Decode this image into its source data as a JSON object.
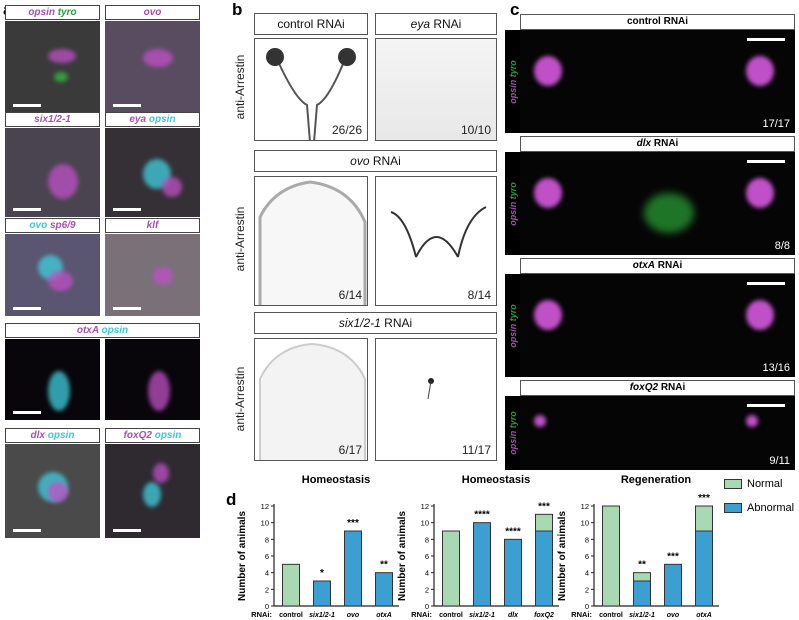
{
  "panel_a": {
    "letter": "a",
    "tiles": [
      {
        "label": [
          {
            "t": "opsin",
            "c": "mag"
          },
          {
            "t": " tyro",
            "c": "gr"
          }
        ],
        "bg": "#3a3a3a"
      },
      {
        "label": [
          {
            "t": "ovo",
            "c": "mag"
          }
        ],
        "bg": "#5a4c60"
      },
      {
        "label": [
          {
            "t": "six1/2-1",
            "c": "mag"
          }
        ],
        "bg": "#4a4450"
      },
      {
        "label": [
          {
            "t": "eya",
            "c": "mag"
          },
          {
            "t": " opsin",
            "c": "cy"
          }
        ],
        "bg": "#353035"
      },
      {
        "label": [
          {
            "t": "ovo",
            "c": "cy"
          },
          {
            "t": " sp6/9",
            "c": "mag"
          }
        ],
        "bg": "#5a5570"
      },
      {
        "label": [
          {
            "t": "klf",
            "c": "mag"
          }
        ],
        "bg": "#7a7078"
      },
      {
        "label": [
          {
            "t": "otxA",
            "c": "mag"
          },
          {
            "t": " opsin",
            "c": "cy"
          }
        ],
        "bg": "#08060a"
      },
      {
        "label": [
          {
            "t": "dlx",
            "c": "mag"
          },
          {
            "t": " opsin",
            "c": "cy"
          }
        ],
        "bg": "#4a4a4a"
      },
      {
        "label": [
          {
            "t": "foxQ2",
            "c": "mag"
          },
          {
            "t": " opsin",
            "c": "cy"
          }
        ],
        "bg": "#2e2a30"
      }
    ]
  },
  "panel_b": {
    "letter": "b",
    "axis_label": "anti-Arrestin",
    "control": {
      "label": "control RNAi",
      "count": "26/26"
    },
    "eya": {
      "label_gene": "eya",
      "label_suffix": " RNAi",
      "count": "10/10"
    },
    "ovo": {
      "label_gene": "ovo",
      "label_suffix": " RNAi",
      "counts": [
        "6/14",
        "8/14"
      ]
    },
    "six": {
      "label_gene": "six1/2-1",
      "label_suffix": " RNAi",
      "counts": [
        "6/17",
        "11/17"
      ]
    }
  },
  "panel_c": {
    "letter": "c",
    "side_label_1": "opsin",
    "side_label_2": " tyro",
    "rows": [
      {
        "gene": "control",
        "suffix": " RNAi",
        "count": "17/17",
        "italic": false
      },
      {
        "gene": "dlx",
        "suffix": " RNAi",
        "count": "8/8",
        "italic": true
      },
      {
        "gene": "otxA",
        "suffix": " RNAi",
        "count": "13/16",
        "italic": true
      },
      {
        "gene": "foxQ2",
        "suffix": " RNAi",
        "count": "9/11",
        "italic": true
      }
    ]
  },
  "panel_d": {
    "letter": "d"
  },
  "colors": {
    "normal": "#a9d9b2",
    "abnormal": "#3b9fd1",
    "magenta": "#c050c8",
    "cyan": "#40d0e0",
    "green": "#30c040"
  },
  "chart_data": [
    {
      "type": "bar",
      "stacked": true,
      "title": "Homeostasis",
      "ylabel": "Number of animals",
      "xprefix": "RNAi:",
      "ylim": [
        0,
        12
      ],
      "yticks": [
        0,
        2,
        4,
        6,
        8,
        10,
        12
      ],
      "categories": [
        "control",
        "six1/2-1",
        "ovo",
        "otxA"
      ],
      "series": [
        {
          "name": "Abnormal",
          "values": [
            0,
            3,
            9,
            4
          ]
        },
        {
          "name": "Normal",
          "values": [
            5,
            0,
            0,
            0
          ]
        }
      ],
      "annotations": [
        "",
        "*",
        "***",
        "**"
      ]
    },
    {
      "type": "bar",
      "stacked": true,
      "title": "Homeostasis",
      "ylabel": "Number of animals",
      "xprefix": "RNAi:",
      "ylim": [
        0,
        12
      ],
      "yticks": [
        0,
        2,
        4,
        6,
        8,
        10,
        12
      ],
      "categories": [
        "control",
        "six1/2-1",
        "dlx",
        "foxQ2"
      ],
      "series": [
        {
          "name": "Abnormal",
          "values": [
            0,
            10,
            8,
            9
          ]
        },
        {
          "name": "Normal",
          "values": [
            9,
            0,
            0,
            2
          ]
        }
      ],
      "annotations": [
        "",
        "****",
        "****",
        "***"
      ]
    },
    {
      "type": "bar",
      "stacked": true,
      "title": "Regeneration",
      "ylabel": "Number of animals",
      "xprefix": "RNAi:",
      "ylim": [
        0,
        12
      ],
      "yticks": [
        0,
        2,
        4,
        6,
        8,
        10,
        12
      ],
      "categories": [
        "control",
        "six1/2-1",
        "ovo",
        "otxA"
      ],
      "series": [
        {
          "name": "Abnormal",
          "values": [
            0,
            3,
            5,
            9
          ]
        },
        {
          "name": "Normal",
          "values": [
            12,
            1,
            0,
            3
          ]
        }
      ],
      "annotations": [
        "",
        "**",
        "***",
        "***"
      ]
    }
  ],
  "legend": {
    "placement": "right",
    "items": [
      "Normal",
      "Abnormal"
    ]
  }
}
